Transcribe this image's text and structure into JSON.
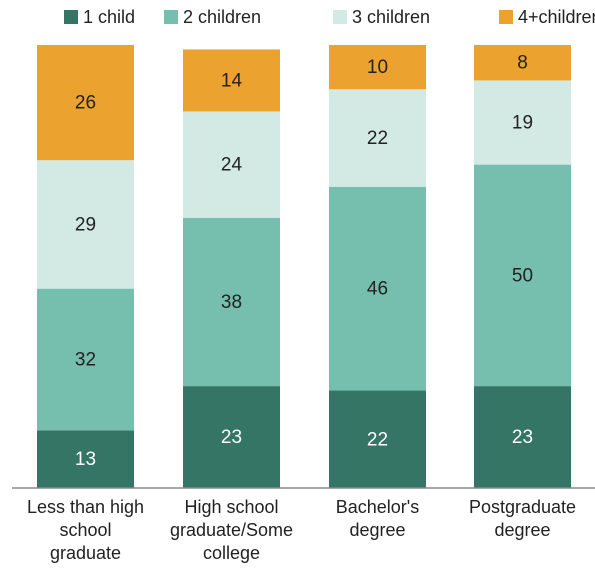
{
  "chart_data": {
    "type": "stacked_bar",
    "categories": [
      "Less than high school graduate",
      "High school graduate/Some college",
      "Bachelor's degree",
      "Postgraduate degree"
    ],
    "series": [
      {
        "name": "1 child",
        "color": "#357566",
        "values": [
          13,
          23,
          22,
          23
        ]
      },
      {
        "name": "2 children",
        "color": "#76bfae",
        "values": [
          32,
          38,
          46,
          50
        ]
      },
      {
        "name": "3 children",
        "color": "#d3eae4",
        "values": [
          29,
          24,
          22,
          19
        ]
      },
      {
        "name": "4+children",
        "color": "#eba22f",
        "values": [
          26,
          14,
          10,
          8
        ]
      }
    ]
  }
}
